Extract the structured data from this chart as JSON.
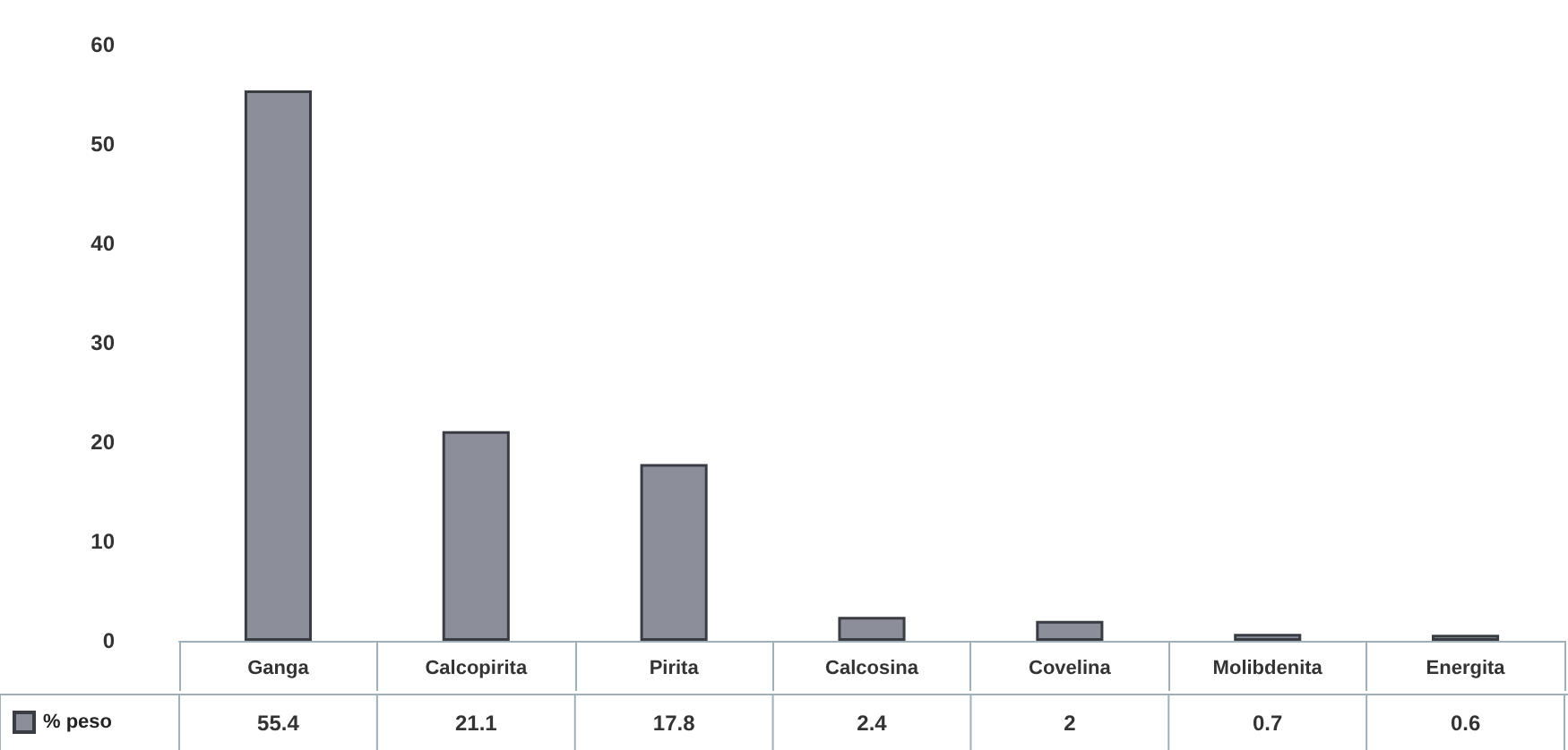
{
  "chart_data": {
    "type": "bar",
    "categories": [
      "Ganga",
      "Calcopirita",
      "Pirita",
      "Calcosina",
      "Covelina",
      "Molibdenita",
      "Energita"
    ],
    "series": [
      {
        "name": "% peso",
        "color": "#8c8f99",
        "values": [
          55.4,
          21.1,
          17.8,
          2.4,
          2,
          0.7,
          0.6
        ],
        "value_labels": [
          "55.4",
          "21.1",
          "17.8",
          "2.4",
          "2",
          "0.7",
          "0.6"
        ]
      }
    ],
    "ylim": [
      0,
      60
    ],
    "yticks": [
      0,
      10,
      20,
      30,
      40,
      50,
      60
    ],
    "grid": false,
    "legend": "bottom left"
  }
}
